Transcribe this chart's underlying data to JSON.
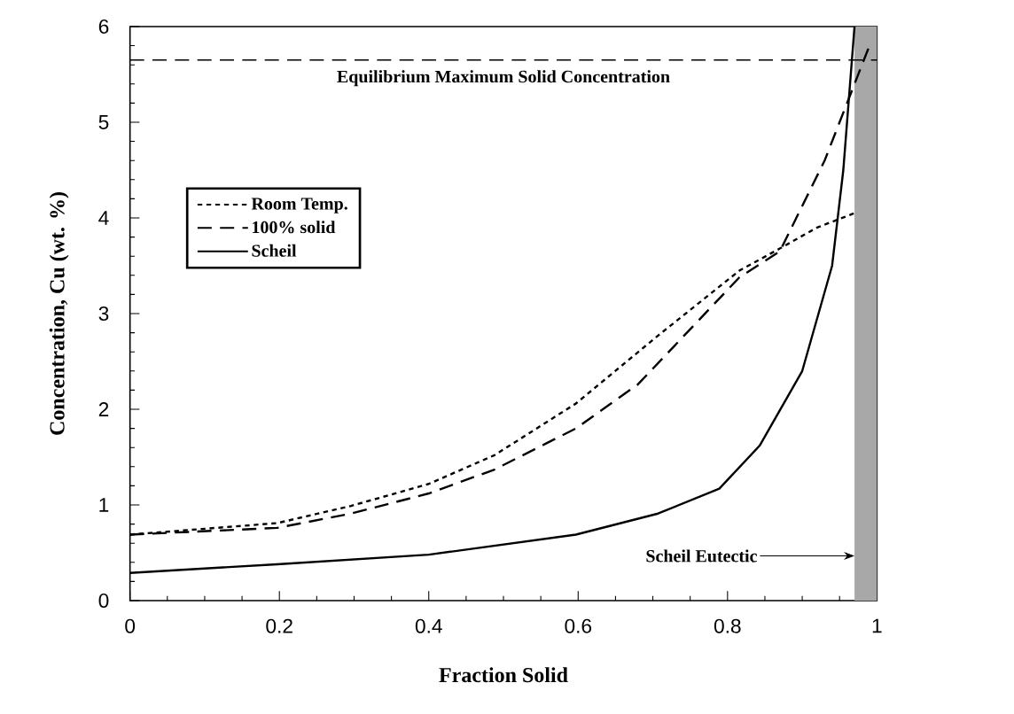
{
  "chart_data": {
    "type": "line",
    "xlabel": "Fraction Solid",
    "ylabel": "Concentration, Cu (wt. %)",
    "xlim": [
      0,
      1
    ],
    "ylim": [
      0,
      6
    ],
    "xticks": [
      0,
      0.2,
      0.4,
      0.6,
      0.8,
      1
    ],
    "yticks": [
      0,
      1,
      2,
      3,
      4,
      5,
      6
    ],
    "grid": false,
    "legend": "left",
    "marker": "none",
    "series": [
      {
        "name": "Room Temp.",
        "color": "#000000",
        "line_style": "dotted",
        "x": [
          0,
          0.197,
          0.296,
          0.4,
          0.488,
          0.597,
          0.707,
          0.816,
          0.87,
          0.92,
          0.97
        ],
        "values": [
          0.69,
          0.81,
          0.99,
          1.22,
          1.52,
          2.06,
          2.77,
          3.45,
          3.68,
          3.9,
          4.05
        ]
      },
      {
        "name": "100% solid",
        "color": "#000000",
        "line_style": "dashed",
        "x": [
          0,
          0.197,
          0.296,
          0.4,
          0.488,
          0.597,
          0.68,
          0.816,
          0.87,
          0.93,
          0.965,
          0.99
        ],
        "values": [
          0.69,
          0.76,
          0.91,
          1.12,
          1.37,
          1.8,
          2.26,
          3.38,
          3.65,
          4.6,
          5.3,
          5.8
        ]
      },
      {
        "name": "Scheil",
        "color": "#000000",
        "line_style": "solid",
        "x": [
          0,
          0.197,
          0.4,
          0.597,
          0.707,
          0.789,
          0.843,
          0.9,
          0.94,
          0.955,
          0.965,
          0.97
        ],
        "values": [
          0.29,
          0.38,
          0.48,
          0.69,
          0.91,
          1.17,
          1.62,
          2.4,
          3.5,
          4.5,
          5.5,
          6.0
        ]
      }
    ],
    "ref_lines": [
      {
        "axis": "y",
        "value": 5.65,
        "label": "Equilibrium Maximum Solid Concentration",
        "line_style": "dashed"
      }
    ],
    "bands": [
      {
        "axis": "x",
        "from": 0.97,
        "to": 1,
        "color": "#a8a8a8",
        "label": "Scheil Eutectic"
      }
    ]
  }
}
